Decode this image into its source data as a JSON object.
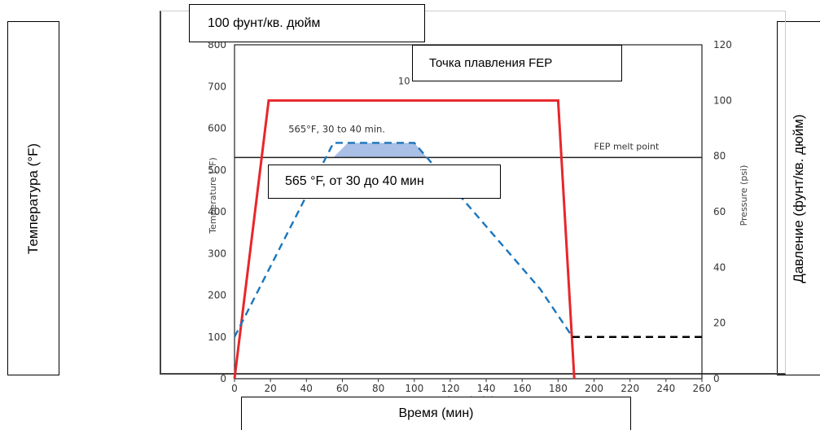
{
  "translations": {
    "y_left_label": "Температура (°F)",
    "y_right_label": "Давление (фунт/кв. дюйм)",
    "x_label": "Время (мин)",
    "pressure_label": "100 фунт/кв. дюйм",
    "melt_label": "Точка плавления FEP",
    "hold_label": "565 °F, от 30 до 40 мин"
  },
  "chart_data": {
    "type": "line",
    "xlabel": "Time (min)",
    "ylabel": "Temperature (°F)",
    "y2label": "Pressure (psi)",
    "xlim": [
      0,
      260
    ],
    "ylim": [
      0,
      800
    ],
    "y2lim": [
      0,
      120
    ],
    "x_ticks": [
      "0",
      "20",
      "40",
      "60",
      "80",
      "100",
      "120",
      "140",
      "160",
      "180",
      "200",
      "220",
      "240",
      "260"
    ],
    "y_ticks": [
      "0",
      "100",
      "200",
      "300",
      "400",
      "500",
      "600",
      "700",
      "800"
    ],
    "y2_ticks": [
      "0",
      "20",
      "40",
      "60",
      "80",
      "100",
      "120"
    ],
    "series": [
      {
        "axis": "y2",
        "color": "#e8262a",
        "style": "solid",
        "x": [
          0,
          19,
          180,
          189
        ],
        "y": [
          0,
          100,
          100,
          0
        ]
      },
      {
        "axis": "y1",
        "color": "#1b75bb",
        "style": "dashed",
        "x": [
          0,
          55,
          100,
          170,
          188
        ],
        "y": [
          100,
          565,
          565,
          215,
          100
        ]
      },
      {
        "axis": "y1",
        "color": "#000000",
        "style": "dashed",
        "x": [
          188,
          260
        ],
        "y": [
          100,
          100
        ]
      }
    ],
    "reference_line": {
      "axis": "y1",
      "y": 530,
      "label": "FEP melt point",
      "color": "#222222"
    },
    "hold_region": {
      "x": [
        55,
        100
      ],
      "y": [
        530,
        565
      ],
      "color": "#a9bfe6"
    },
    "annotations": [
      {
        "text": "565°F, 30 to 40 min.",
        "x": 30,
        "y": 590
      },
      {
        "text": "10",
        "x": 91,
        "y": 705
      }
    ]
  }
}
